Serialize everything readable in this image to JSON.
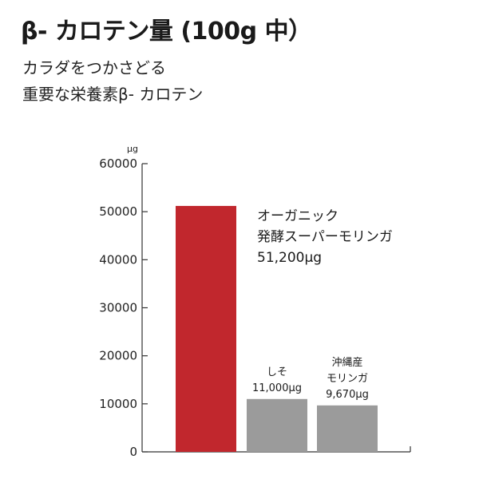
{
  "title": "β- カロテン量 (100g 中）",
  "subtitle_lines": [
    "カラダをつかさどる",
    "重要な栄養素β- カロテン"
  ],
  "colors": {
    "highlight_bar": "#c1272d",
    "other_bar": "#9b9b9b",
    "axis": "#333333"
  },
  "chart_data": {
    "type": "bar",
    "title": "β- カロテン量 (100g 中）",
    "ylabel": "μg",
    "xlabel": "",
    "ylim": [
      0,
      60000
    ],
    "yticks": [
      "0",
      "10000",
      "20000",
      "30000",
      "40000",
      "50000",
      "60000"
    ],
    "grid": false,
    "bars": [
      {
        "value": 51200,
        "label_lines": [
          "オーガニック",
          "発酵スーパーモリンガ",
          "51,200μg"
        ],
        "color": "#c1272d",
        "label_position": "right"
      },
      {
        "value": 11000,
        "label_lines": [
          "しそ",
          "11,000μg"
        ],
        "color": "#9b9b9b",
        "label_position": "above"
      },
      {
        "value": 9670,
        "label_lines": [
          "沖縄産",
          "モリンガ",
          "9,670μg"
        ],
        "color": "#9b9b9b",
        "label_position": "above"
      }
    ]
  }
}
